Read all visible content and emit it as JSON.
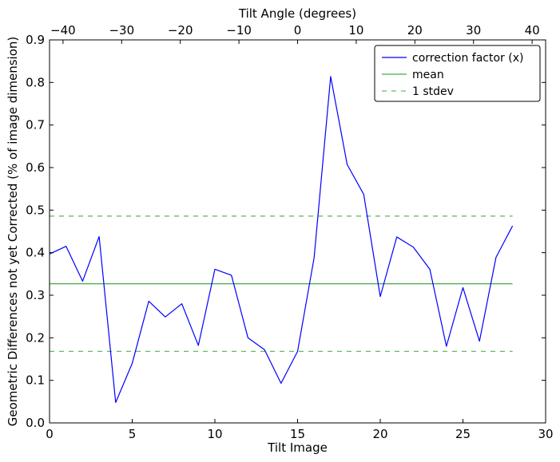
{
  "chart_data": {
    "type": "line",
    "xlabel": "Tilt Image",
    "ylabel": "Geometric Differences not yet Corrected (% of image dimension)",
    "top_xlabel": "Tilt Angle (degrees)",
    "xlim": [
      0,
      30
    ],
    "ylim": [
      0,
      0.9
    ],
    "top_xlim": [
      -42.3,
      42.3
    ],
    "xticks": [
      0,
      5,
      10,
      15,
      20,
      25,
      30
    ],
    "xtick_labels": [
      "0",
      "5",
      "10",
      "15",
      "20",
      "25",
      "30"
    ],
    "yticks": [
      0,
      0.1,
      0.2,
      0.3,
      0.4,
      0.5,
      0.6,
      0.7,
      0.8,
      0.9
    ],
    "ytick_labels": [
      "0.0",
      "0.1",
      "0.2",
      "0.3",
      "0.4",
      "0.5",
      "0.6",
      "0.7",
      "0.8",
      "0.9"
    ],
    "top_xticks": [
      -40,
      -30,
      -20,
      -10,
      0,
      10,
      20,
      30,
      40
    ],
    "top_xtick_labels": [
      "−40",
      "−30",
      "−20",
      "−10",
      "0",
      "10",
      "20",
      "30",
      "40"
    ],
    "grid": false,
    "legend_position": "top-right",
    "series": [
      {
        "name": "correction factor (x)",
        "color": "#0000ff",
        "style": "solid",
        "x": [
          0,
          1,
          2,
          3,
          4,
          5,
          6,
          7,
          8,
          9,
          10,
          11,
          12,
          13,
          14,
          15,
          16,
          17,
          18,
          19,
          20,
          21,
          22,
          23,
          24,
          25,
          26,
          27,
          28
        ],
        "y": [
          0.397,
          0.415,
          0.333,
          0.438,
          0.048,
          0.14,
          0.286,
          0.249,
          0.28,
          0.182,
          0.361,
          0.347,
          0.2,
          0.172,
          0.093,
          0.168,
          0.388,
          0.814,
          0.607,
          0.537,
          0.297,
          0.437,
          0.413,
          0.361,
          0.18,
          0.318,
          0.192,
          0.389,
          0.463
        ]
      },
      {
        "name": "mean",
        "color": "#44aa44",
        "style": "solid",
        "x": [
          0,
          28
        ],
        "y": [
          0.327,
          0.327
        ]
      },
      {
        "name": "1 stdev",
        "color": "#66bb66",
        "style": "dashed",
        "x": [
          0,
          28
        ],
        "y": [
          0.486,
          0.486
        ],
        "y_lower": [
          0.168,
          0.168
        ]
      }
    ]
  }
}
